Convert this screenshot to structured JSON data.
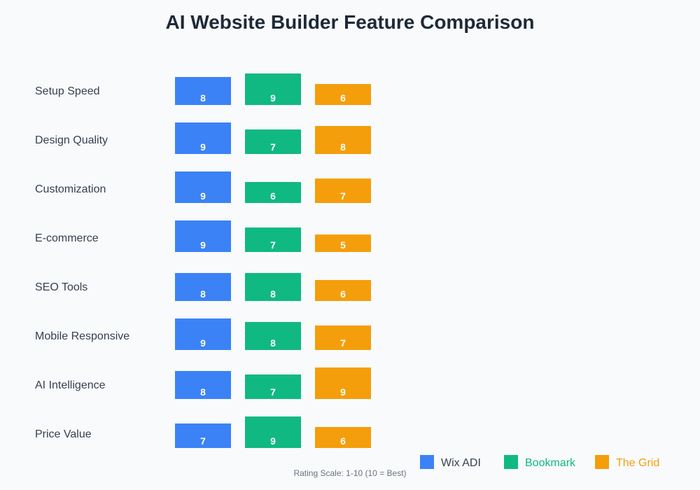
{
  "chart_data": {
    "type": "bar",
    "orientation": "grouped-vertical-per-row",
    "title": "AI Website Builder Feature Comparison",
    "footnote": "Rating Scale: 1-10 (10 = Best)",
    "categories": [
      "Setup Speed",
      "Design Quality",
      "Customization",
      "E-commerce",
      "SEO Tools",
      "Mobile Responsive",
      "AI Intelligence",
      "Price Value"
    ],
    "series": [
      {
        "name": "Wix ADI",
        "color": "#3b82f6",
        "label_color": "#374151",
        "values": [
          8,
          9,
          9,
          9,
          8,
          9,
          8,
          7
        ]
      },
      {
        "name": "Bookmark",
        "color": "#10b981",
        "label_color": "#10b981",
        "values": [
          9,
          7,
          6,
          7,
          8,
          8,
          7,
          9
        ]
      },
      {
        "name": "The Grid",
        "color": "#f59e0b",
        "label_color": "#f59e0b",
        "values": [
          6,
          8,
          7,
          5,
          6,
          7,
          9,
          6
        ]
      }
    ],
    "ylim": [
      0,
      10
    ],
    "legend": "bottom-right"
  }
}
